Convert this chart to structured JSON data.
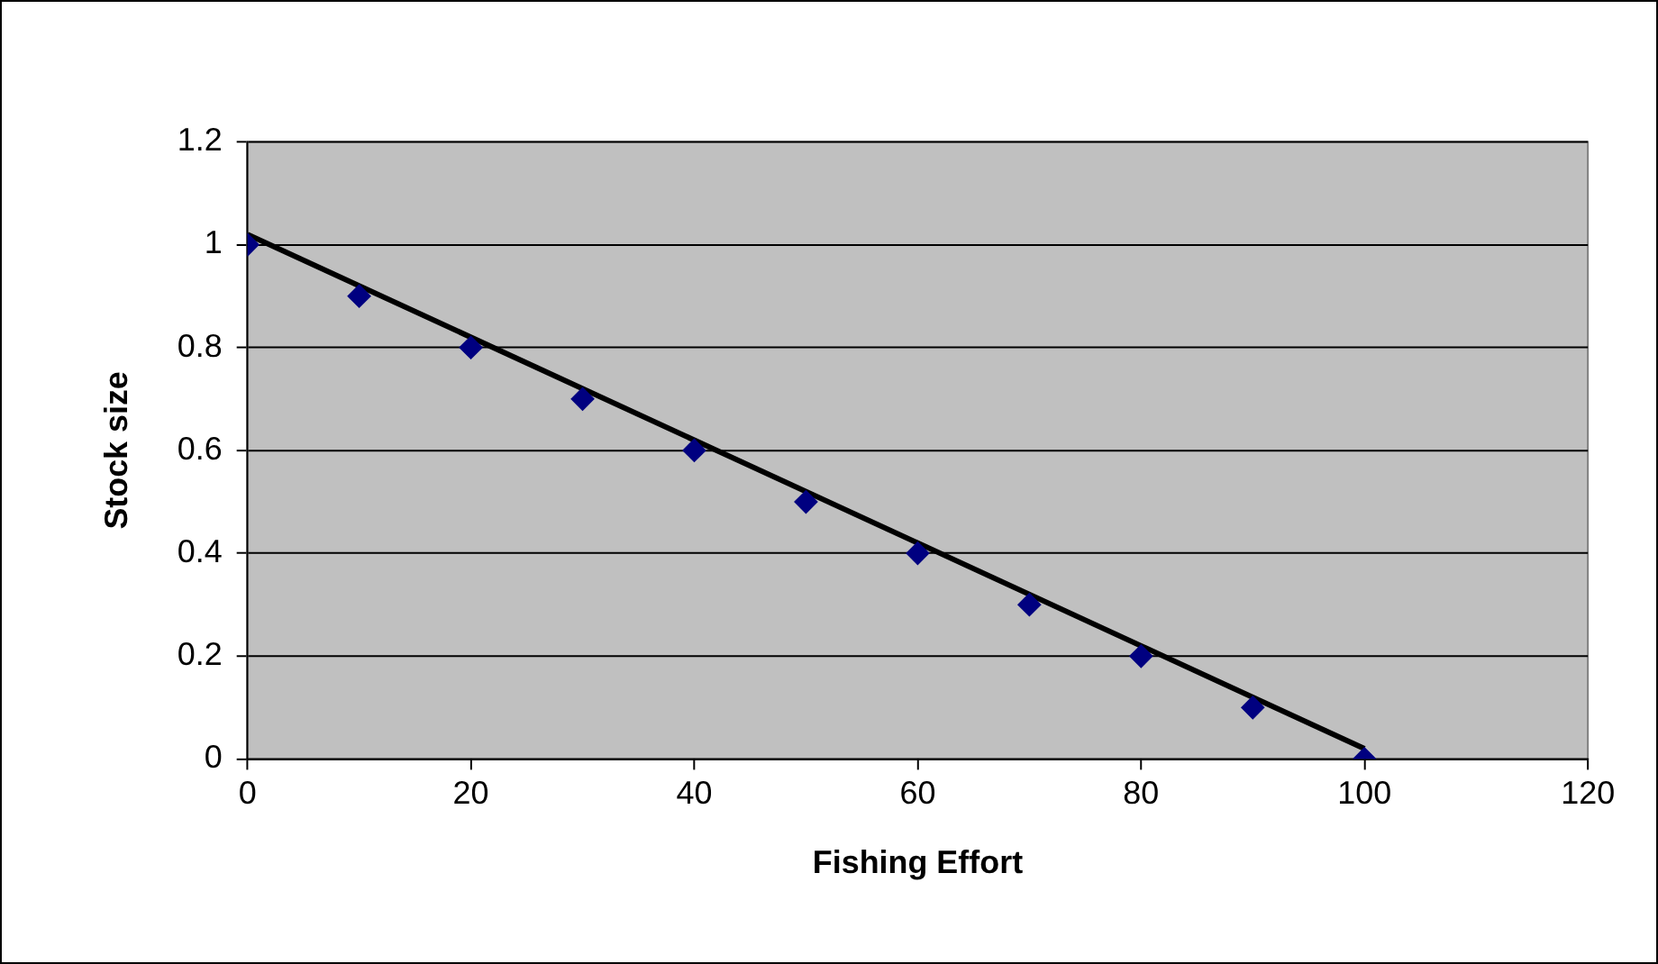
{
  "chart_data": {
    "type": "scatter",
    "xlabel": "Fishing Effort",
    "ylabel": "Stock size",
    "x": [
      0,
      10,
      20,
      30,
      40,
      50,
      60,
      70,
      80,
      90,
      100
    ],
    "series": [
      {
        "color": "#000080",
        "marker": "diamond",
        "values": [
          1,
          0.9,
          0.8,
          0.7,
          0.6,
          0.5,
          0.4,
          0.3,
          0.2,
          0.1,
          0
        ]
      },
      {
        "type": "line",
        "color": "#000000",
        "marker": "none",
        "x": [
          0,
          100
        ],
        "values": [
          1.02,
          0.02
        ]
      }
    ],
    "xlim": [
      0,
      120
    ],
    "xticks": [
      0,
      20,
      40,
      60,
      80,
      100,
      120
    ],
    "ylim": [
      0,
      1.2
    ],
    "yticks": [
      0,
      0.2,
      0.4,
      0.6,
      0.8,
      1,
      1.2
    ],
    "grid": "y",
    "legend": false
  }
}
